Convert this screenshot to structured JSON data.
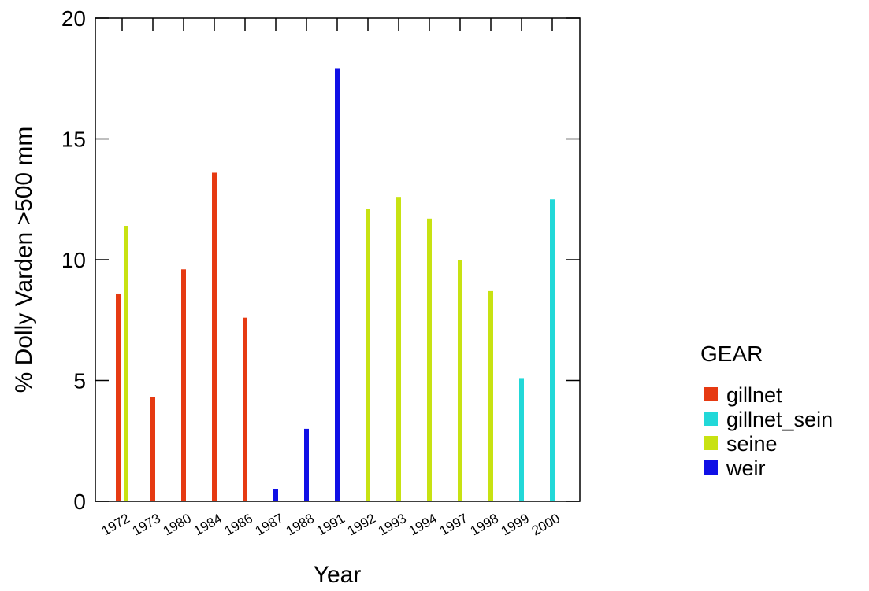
{
  "chart_data": {
    "type": "bar",
    "xlabel": "Year",
    "ylabel": "% Dolly Varden >500 mm",
    "ylim": [
      0,
      20
    ],
    "yticks": [
      0,
      5,
      10,
      15,
      20
    ],
    "categories": [
      "1972",
      "1973",
      "1980",
      "1984",
      "1986",
      "1987",
      "1988",
      "1991",
      "1992",
      "1993",
      "1994",
      "1997",
      "1998",
      "1999",
      "2000"
    ],
    "legend": {
      "title": "GEAR",
      "placement": "right",
      "entries": [
        "gillnet",
        "gillnet_sein",
        "seine",
        "weir"
      ]
    },
    "series": [
      {
        "name": "gillnet",
        "color": "#e63a12",
        "values": [
          8.6,
          4.3,
          9.6,
          13.6,
          7.6,
          null,
          null,
          null,
          null,
          null,
          null,
          null,
          null,
          null,
          null
        ]
      },
      {
        "name": "gillnet_sein",
        "color": "#22d8d8",
        "values": [
          null,
          null,
          null,
          null,
          null,
          null,
          null,
          null,
          null,
          null,
          null,
          null,
          null,
          5.1,
          12.5
        ]
      },
      {
        "name": "seine",
        "color": "#c8e212",
        "values": [
          11.4,
          null,
          null,
          null,
          null,
          null,
          null,
          null,
          12.1,
          12.6,
          11.7,
          10.0,
          8.7,
          null,
          null
        ]
      },
      {
        "name": "weir",
        "color": "#1010e6",
        "values": [
          null,
          null,
          null,
          null,
          null,
          0.5,
          3.0,
          17.9,
          null,
          null,
          null,
          null,
          null,
          null,
          null
        ]
      }
    ]
  }
}
